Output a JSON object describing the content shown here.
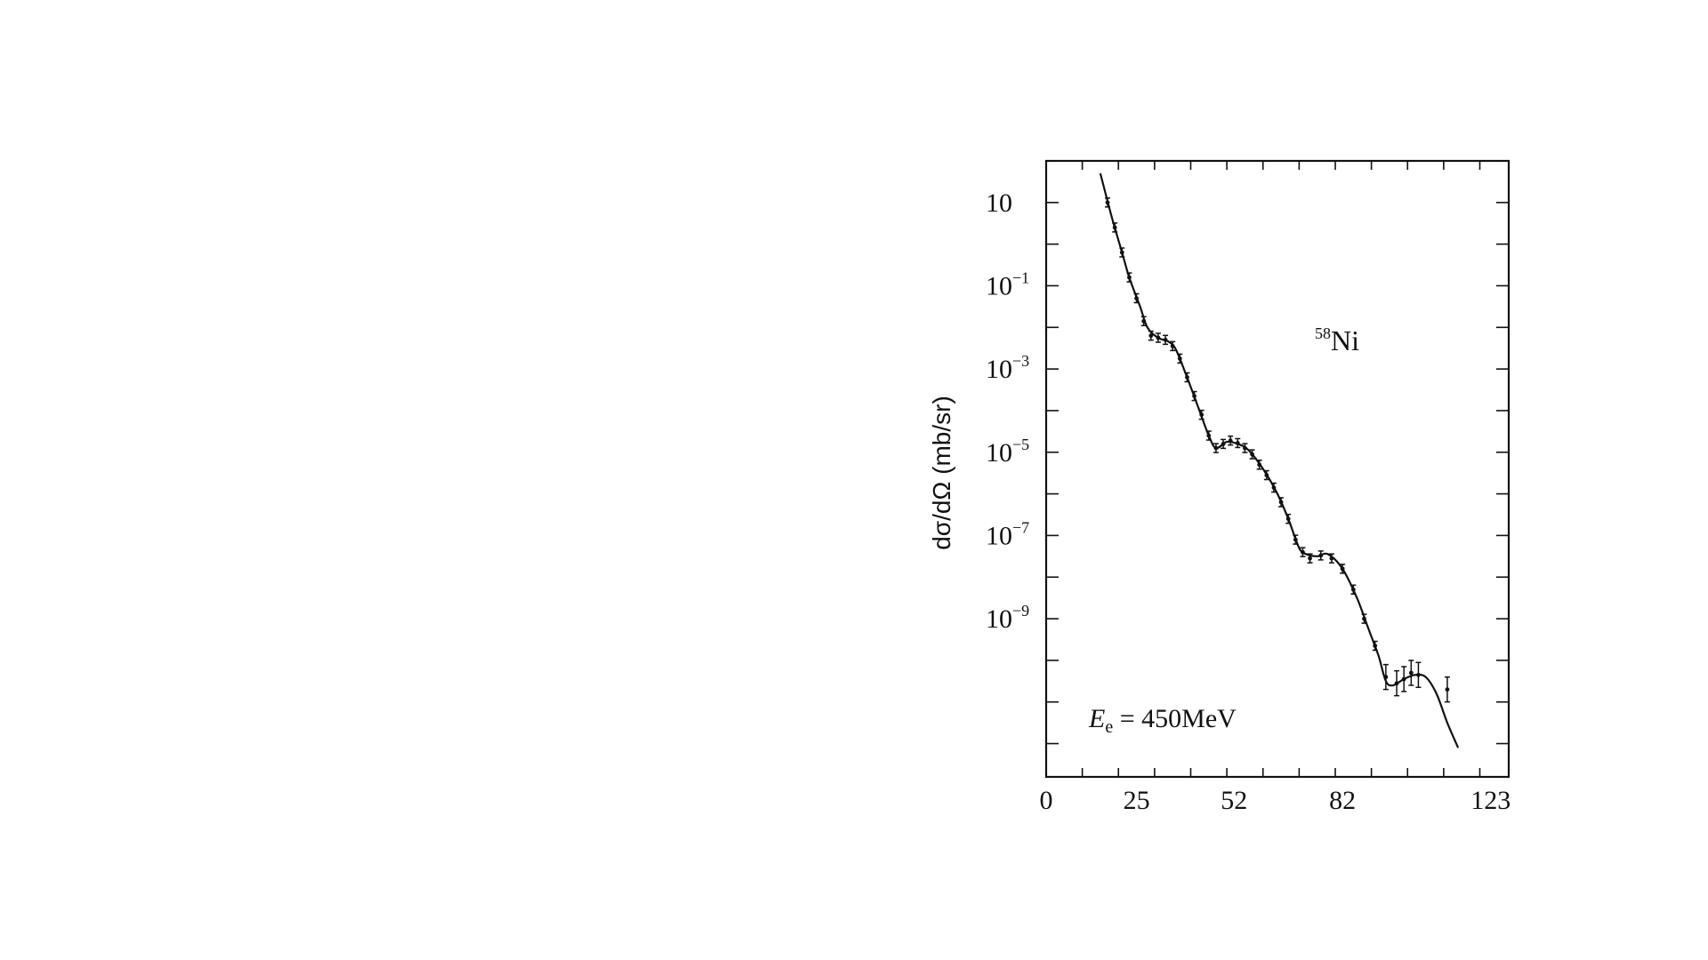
{
  "chart_data": {
    "type": "line",
    "title": "",
    "xlabel": "",
    "ylabel": "dσ/dΩ (mb/sr)",
    "annotations": {
      "isotope_mass": "58",
      "isotope_symbol": "Ni",
      "energy_symbol": "E",
      "energy_subscript": "e",
      "energy_value": " = 450MeV"
    },
    "y_scale": "log",
    "xlim": [
      0,
      128
    ],
    "ylim_log10": [
      -12.8,
      2.0
    ],
    "grid": false,
    "legend": "none",
    "x_ticks": [
      {
        "value": 0,
        "label": "0"
      },
      {
        "value": 25,
        "label": "25"
      },
      {
        "value": 52,
        "label": "52"
      },
      {
        "value": 82,
        "label": "82"
      },
      {
        "value": 123,
        "label": "123"
      }
    ],
    "y_ticks": [
      {
        "exp": 1,
        "base": "10",
        "sup": ""
      },
      {
        "exp": -1,
        "base": "10",
        "sup": "−1"
      },
      {
        "exp": -3,
        "base": "10",
        "sup": "−3"
      },
      {
        "exp": -5,
        "base": "10",
        "sup": "−5"
      },
      {
        "exp": -7,
        "base": "10",
        "sup": "−7"
      },
      {
        "exp": -9,
        "base": "10",
        "sup": "−9"
      }
    ],
    "series": [
      {
        "curve_log10": [
          [
            15,
            1.7
          ],
          [
            18,
            0.7
          ],
          [
            21,
            -0.2
          ],
          [
            23,
            -0.8
          ],
          [
            26,
            -1.5
          ],
          [
            28,
            -2.0
          ],
          [
            31,
            -2.25
          ],
          [
            34,
            -2.35
          ],
          [
            36,
            -2.55
          ],
          [
            39,
            -3.2
          ],
          [
            42,
            -3.9
          ],
          [
            45,
            -4.6
          ],
          [
            47,
            -4.9
          ],
          [
            50,
            -4.75
          ],
          [
            53,
            -4.8
          ],
          [
            56,
            -4.95
          ],
          [
            60,
            -5.4
          ],
          [
            64,
            -6.0
          ],
          [
            67,
            -6.6
          ],
          [
            70,
            -7.3
          ],
          [
            72,
            -7.45
          ],
          [
            75,
            -7.5
          ],
          [
            78,
            -7.45
          ],
          [
            82,
            -7.8
          ],
          [
            86,
            -8.5
          ],
          [
            89,
            -9.2
          ],
          [
            92,
            -9.9
          ],
          [
            94,
            -10.5
          ],
          [
            96,
            -10.6
          ],
          [
            99,
            -10.45
          ],
          [
            102,
            -10.35
          ],
          [
            105,
            -10.4
          ],
          [
            108,
            -10.8
          ],
          [
            111,
            -11.5
          ],
          [
            114,
            -12.1
          ]
        ],
        "points_log10": [
          [
            17,
            1.0
          ],
          [
            19,
            0.4
          ],
          [
            21,
            -0.2
          ],
          [
            23,
            -0.8
          ],
          [
            25,
            -1.3
          ],
          [
            27,
            -1.85
          ],
          [
            29,
            -2.2
          ],
          [
            31,
            -2.25
          ],
          [
            33,
            -2.3
          ],
          [
            35,
            -2.45
          ],
          [
            37,
            -2.75
          ],
          [
            39,
            -3.2
          ],
          [
            41,
            -3.65
          ],
          [
            43,
            -4.1
          ],
          [
            45,
            -4.6
          ],
          [
            47,
            -4.9
          ],
          [
            49,
            -4.8
          ],
          [
            51,
            -4.72
          ],
          [
            53,
            -4.78
          ],
          [
            55,
            -4.9
          ],
          [
            57,
            -5.05
          ],
          [
            59,
            -5.3
          ],
          [
            61,
            -5.55
          ],
          [
            63,
            -5.85
          ],
          [
            65,
            -6.2
          ],
          [
            67,
            -6.6
          ],
          [
            69,
            -7.1
          ],
          [
            71,
            -7.4
          ],
          [
            73,
            -7.55
          ],
          [
            76,
            -7.48
          ],
          [
            79,
            -7.55
          ],
          [
            82,
            -7.8
          ],
          [
            85,
            -8.3
          ],
          [
            88,
            -9.0
          ],
          [
            91,
            -9.65
          ],
          [
            94,
            -10.4
          ],
          [
            97,
            -10.55
          ],
          [
            99,
            -10.45
          ],
          [
            101,
            -10.3
          ],
          [
            103,
            -10.35
          ],
          [
            111,
            -10.7
          ]
        ]
      }
    ]
  }
}
